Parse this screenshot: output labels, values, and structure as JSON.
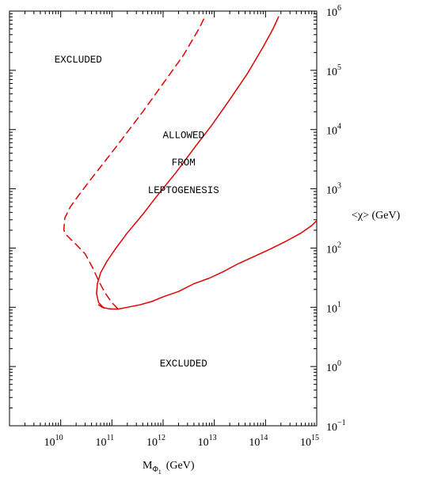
{
  "chart_data": {
    "type": "line",
    "xscale": "log",
    "yscale": "log",
    "xlim": [
      1000000000.0,
      1000000000000000.0
    ],
    "ylim": [
      0.1,
      1000000.0
    ],
    "xlabel": "M_Φ1 (GeV)",
    "xlabel_main": "M",
    "xlabel_sub": "Φ",
    "xlabel_subsub": "1",
    "xlabel_unit": "(GeV)",
    "ylabel": "<χ> (GeV)",
    "x_ticks": [
      {
        "base": "10",
        "exp": "10",
        "value": 10000000000.0
      },
      {
        "base": "10",
        "exp": "11",
        "value": 100000000000.0
      },
      {
        "base": "10",
        "exp": "12",
        "value": 1000000000000.0
      },
      {
        "base": "10",
        "exp": "13",
        "value": 10000000000000.0
      },
      {
        "base": "10",
        "exp": "14",
        "value": 100000000000000.0
      },
      {
        "base": "10",
        "exp": "15",
        "value": 1000000000000000.0
      }
    ],
    "y_ticks": [
      {
        "base": "10",
        "exp": "−1",
        "value": 0.1
      },
      {
        "base": "10",
        "exp": "0",
        "value": 1
      },
      {
        "base": "10",
        "exp": "1",
        "value": 10
      },
      {
        "base": "10",
        "exp": "2",
        "value": 100
      },
      {
        "base": "10",
        "exp": "3",
        "value": 1000
      },
      {
        "base": "10",
        "exp": "4",
        "value": 10000
      },
      {
        "base": "10",
        "exp": "5",
        "value": 100000
      },
      {
        "base": "10",
        "exp": "6",
        "value": 1000000
      }
    ],
    "annotations": [
      {
        "text": "EXCLUDED",
        "x": 22000000000.0,
        "y": 135000.0
      },
      {
        "text": "ALLOWED",
        "x": 2500000000000.0,
        "y": 7200.0
      },
      {
        "text": "FROM",
        "x": 2500000000000.0,
        "y": 2500.0
      },
      {
        "text": "LEPTOGENESIS",
        "x": 2500000000000.0,
        "y": 850.0
      },
      {
        "text": "EXCLUDED",
        "x": 2500000000000.0,
        "y": 1.0
      }
    ],
    "series": [
      {
        "style": "dashed",
        "color": "#e00000",
        "points": [
          [
            130000000000.0,
            9.5
          ],
          [
            100000000000.0,
            12
          ],
          [
            75000000000.0,
            17
          ],
          [
            56000000000.0,
            27
          ],
          [
            43000000000.0,
            45
          ],
          [
            30000000000.0,
            80
          ],
          [
            19000000000.0,
            120
          ],
          [
            13000000000.0,
            165
          ],
          [
            11500000000.0,
            200
          ],
          [
            12000000000.0,
            320
          ],
          [
            15500000000.0,
            500
          ],
          [
            23000000000.0,
            800
          ],
          [
            40000000000.0,
            1500
          ],
          [
            75000000000.0,
            3000
          ],
          [
            160000000000.0,
            7000
          ],
          [
            400000000000.0,
            20000
          ],
          [
            1000000000000.0,
            60000
          ],
          [
            2500000000000.0,
            180000
          ],
          [
            5000000000000.0,
            500000
          ],
          [
            6500000000000.0,
            800000
          ]
        ]
      },
      {
        "style": "solid",
        "color": "#e00000",
        "points": [
          [
            70000000000.0,
            9.7
          ],
          [
            55000000000.0,
            12
          ],
          [
            50000000000.0,
            17
          ],
          [
            52000000000.0,
            25
          ],
          [
            60000000000.0,
            38
          ],
          [
            80000000000.0,
            60
          ],
          [
            120000000000.0,
            100
          ],
          [
            200000000000.0,
            180
          ],
          [
            400000000000.0,
            370
          ],
          [
            800000000000.0,
            800
          ],
          [
            1800000000000.0,
            1900
          ],
          [
            4000000000000.0,
            4800
          ],
          [
            9000000000000.0,
            12000
          ],
          [
            20000000000000.0,
            32000
          ],
          [
            45000000000000.0,
            90000
          ],
          [
            90000000000000.0,
            250000
          ],
          [
            140000000000000.0,
            500000
          ],
          [
            180000000000000.0,
            800000
          ]
        ]
      },
      {
        "style": "solid",
        "color": "#e00000",
        "points": [
          [
            55000000000.0,
            11
          ],
          [
            65000000000.0,
            10
          ],
          [
            90000000000.0,
            9.4
          ],
          [
            130000000000.0,
            9.3
          ],
          [
            200000000000.0,
            10.0
          ],
          [
            350000000000.0,
            11
          ],
          [
            600000000000.0,
            12.5
          ],
          [
            1000000000000.0,
            15
          ],
          [
            2000000000000.0,
            18.5
          ],
          [
            4000000000000.0,
            25
          ],
          [
            8000000000000.0,
            31
          ],
          [
            15000000000000.0,
            40
          ],
          [
            30000000000000.0,
            55
          ],
          [
            60000000000000.0,
            72
          ],
          [
            120000000000000.0,
            95
          ],
          [
            250000000000000.0,
            130
          ],
          [
            500000000000000.0,
            180
          ],
          [
            800000000000000.0,
            240
          ],
          [
            1000000000000000.0,
            290
          ]
        ]
      }
    ]
  }
}
